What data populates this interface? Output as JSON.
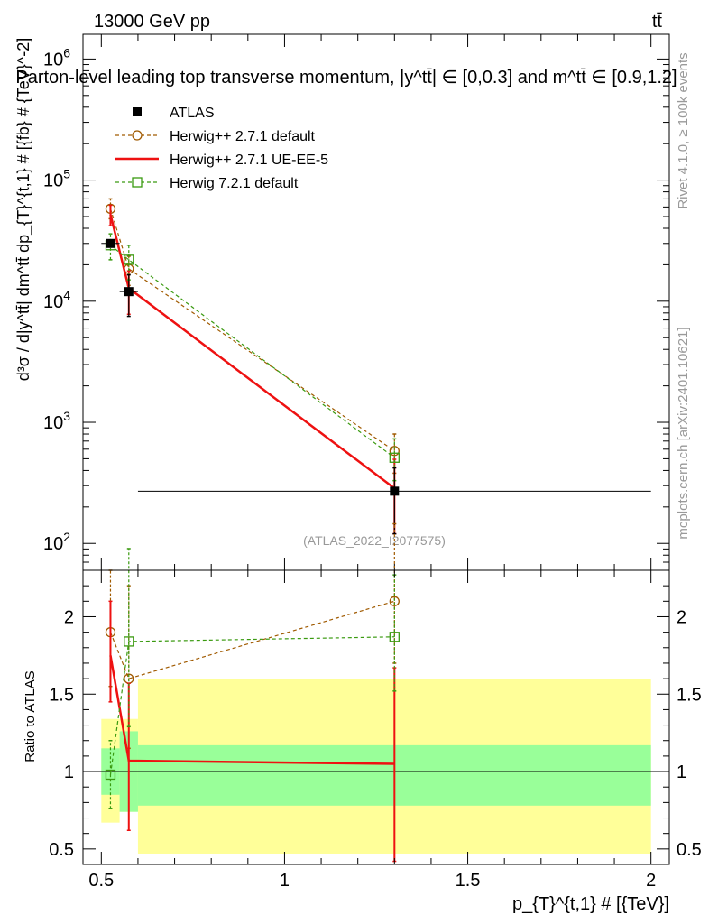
{
  "header": {
    "energy_label": "13000 GeV pp",
    "process_label": "tt̄"
  },
  "side_labels": {
    "rivet": "Rivet 4.1.0, ≥ 100k events",
    "mcplots": "mcplots.cern.ch [arXiv:2401.10621]"
  },
  "chart_data": [
    {
      "type": "line",
      "panel": "main",
      "title": "Parton-level leading top transverse momentum, |y^tt̄| ∈ [0,0.3] and m^tt̄ ∈ [0.9,1.2]",
      "watermark": "(ATLAS_2022_I2077575)",
      "xlabel": "p_{T}^{t,1} # [{TeV}]",
      "ylabel": "d³σ / d|y^tt̄| dm^tt̄ dp_{T}^{t,1} # [{fb} # {TeV}^-2]",
      "yscale": "log",
      "xlim": [
        0.45,
        2.05
      ],
      "ylim": [
        60,
        1600000
      ],
      "x_ticks": [
        0.5,
        1,
        1.5,
        2
      ],
      "x_tick_labels": [
        "0.5",
        "1",
        "1.5",
        "2"
      ],
      "y_ticks": [
        100,
        1000,
        10000,
        100000,
        1000000
      ],
      "legend_position": "top-left",
      "series": [
        {
          "name": "ATLAS",
          "style": "data",
          "color": "#000000",
          "marker": "filled-square",
          "x": [
            0.525,
            0.575,
            1.3
          ],
          "x_err": [
            0.025,
            0.025,
            0.7
          ],
          "y": [
            30000,
            12000,
            270
          ],
          "y_err_low": [
            2000,
            4500,
            150
          ],
          "y_err_high": [
            2000,
            4500,
            150
          ]
        },
        {
          "name": "Herwig++ 2.7.1 default",
          "style": "dashed",
          "color": "#a05a00",
          "marker": "open-circle",
          "x": [
            0.525,
            0.575,
            1.3
          ],
          "y": [
            58000,
            18500,
            580
          ],
          "y_err_low": [
            10000,
            5000,
            200
          ],
          "y_err_high": [
            12000,
            5000,
            220
          ]
        },
        {
          "name": "Herwig++ 2.7.1 UE-EE-5",
          "style": "solid",
          "color": "#ee1111",
          "marker": "none",
          "x": [
            0.525,
            0.575,
            1.3
          ],
          "y": [
            52000,
            12800,
            285
          ],
          "y_err_low": [
            10000,
            5000,
            165
          ],
          "y_err_high": [
            10000,
            5000,
            210
          ]
        },
        {
          "name": "Herwig 7.2.1 default",
          "style": "dashed",
          "color": "#3a9a10",
          "marker": "open-square",
          "x": [
            0.525,
            0.575,
            1.3
          ],
          "y": [
            29000,
            22000,
            510
          ],
          "y_err_low": [
            7000,
            7000,
            180
          ],
          "y_err_high": [
            7000,
            7000,
            220
          ]
        }
      ]
    },
    {
      "type": "line",
      "panel": "ratio",
      "ylabel": "Ratio to ATLAS",
      "xlim": [
        0.45,
        2.05
      ],
      "ylim": [
        0.4,
        2.3
      ],
      "y_ticks": [
        0.5,
        1,
        1.5,
        2
      ],
      "y_tick_labels": [
        "0.5",
        "1",
        "1.5",
        "2"
      ],
      "reference_line": 1,
      "uncertainty_bands": [
        {
          "name": "stat",
          "color": "#99ff99",
          "x_low": [
            0.5,
            0.55,
            0.6
          ],
          "x_high": [
            0.55,
            0.6,
            2.0
          ],
          "low": [
            0.85,
            0.74,
            0.78
          ],
          "high": [
            1.15,
            1.26,
            1.17
          ]
        },
        {
          "name": "total",
          "color": "#ffff99",
          "x_low": [
            0.5,
            0.55,
            0.6
          ],
          "x_high": [
            0.55,
            0.6,
            2.0
          ],
          "low": [
            0.67,
            0.74,
            0.47
          ],
          "high": [
            1.34,
            1.34,
            1.6
          ]
        }
      ],
      "series": [
        {
          "name": "Herwig++ 2.7.1 default",
          "style": "dashed",
          "color": "#a05a00",
          "marker": "open-circle",
          "x": [
            0.525,
            0.575,
            1.3
          ],
          "y": [
            1.9,
            1.6,
            2.1
          ],
          "y_err_low": [
            0.35,
            0.45,
            0.4
          ],
          "y_err_high": [
            0.4,
            0.6,
            0.5
          ]
        },
        {
          "name": "Herwig++ 2.7.1 UE-EE-5",
          "style": "solid",
          "color": "#ee1111",
          "marker": "none",
          "x": [
            0.525,
            0.575,
            1.3
          ],
          "y": [
            1.75,
            1.07,
            1.05
          ],
          "y_err_low": [
            0.3,
            0.45,
            0.63
          ],
          "y_err_high": [
            0.35,
            0.5,
            0.62
          ]
        },
        {
          "name": "Herwig 7.2.1 default",
          "style": "dashed",
          "color": "#3a9a10",
          "marker": "open-square",
          "x": [
            0.525,
            0.575,
            1.3
          ],
          "y": [
            0.98,
            1.84,
            1.87
          ],
          "y_err_low": [
            0.22,
            0.55,
            0.35
          ],
          "y_err_high": [
            0.22,
            0.6,
            0.4
          ]
        }
      ]
    }
  ]
}
